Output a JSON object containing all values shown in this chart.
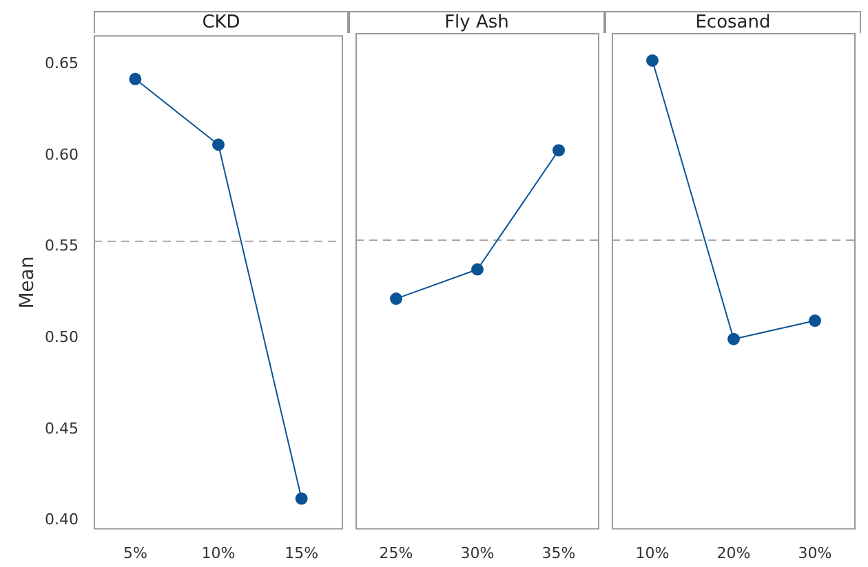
{
  "chart_data": [
    {
      "type": "line",
      "title": "CKD",
      "ylabel": "Mean",
      "categories": [
        "5%",
        "10%",
        "15%"
      ],
      "values": [
        0.642,
        0.606,
        0.412
      ],
      "color": "#0b5394",
      "marker": "circle",
      "line_style": "solid",
      "ylim": [
        0.395,
        0.666
      ],
      "yticks": [
        {
          "value": 0.4,
          "label": "0.40"
        },
        0.45,
        {
          "value": 0.5,
          "label": "0.50"
        },
        0.55,
        {
          "value": 0.6,
          "label": "0.60"
        },
        0.65
      ],
      "ref_lines": [
        {
          "axis": "y",
          "value": 0.553,
          "color": "#a6a6a6",
          "line_style": "dashed"
        }
      ]
    },
    {
      "type": "line",
      "title": "Fly Ash",
      "categories": [
        "25%",
        "30%",
        "35%"
      ],
      "values": [
        0.521,
        0.537,
        0.602
      ],
      "color": "#0b5394",
      "marker": "circle",
      "line_style": "solid",
      "ylim": [
        0.395,
        0.666
      ],
      "tick_labels": "x",
      "ref_lines": [
        {
          "axis": "y",
          "value": 0.553,
          "color": "#a6a6a6",
          "line_style": "dashed"
        }
      ]
    },
    {
      "type": "line",
      "title": "Ecosand",
      "categories": [
        "10%",
        "20%",
        "30%"
      ],
      "values": [
        0.651,
        0.499,
        0.509
      ],
      "color": "#0b5394",
      "marker": "circle",
      "line_style": "solid",
      "ylim": [
        0.395,
        0.666
      ],
      "tick_labels": "x",
      "ref_lines": [
        {
          "axis": "y",
          "value": 0.553,
          "color": "#a6a6a6",
          "line_style": "dashed"
        }
      ]
    }
  ]
}
